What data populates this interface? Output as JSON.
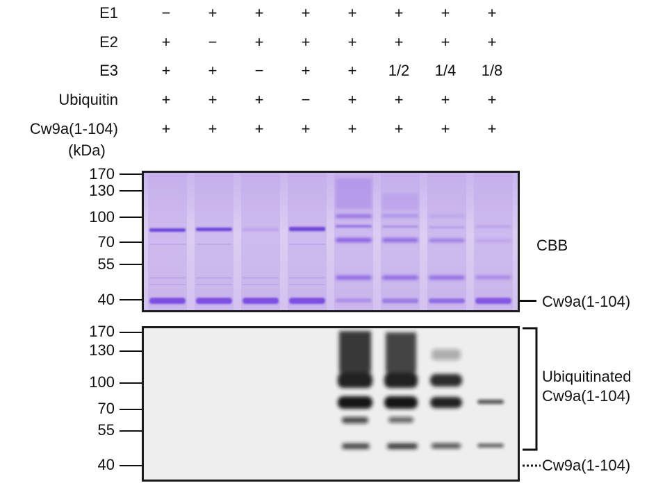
{
  "lane_count": 8,
  "conditions": [
    {
      "name": "E1",
      "values": [
        "−",
        "+",
        "+",
        "+",
        "+",
        "+",
        "+",
        "+"
      ]
    },
    {
      "name": "E2",
      "values": [
        "+",
        "−",
        "+",
        "+",
        "+",
        "+",
        "+",
        "+"
      ]
    },
    {
      "name": "E3",
      "values": [
        "+",
        "+",
        "−",
        "+",
        "+",
        "1/2",
        "1/4",
        "1/8"
      ]
    },
    {
      "name": "Ubiquitin",
      "values": [
        "+",
        "+",
        "+",
        "−",
        "+",
        "+",
        "+",
        "+"
      ]
    },
    {
      "name": "Cw9a(1-104)",
      "values": [
        "+",
        "+",
        "+",
        "+",
        "+",
        "+",
        "+",
        "+"
      ]
    }
  ],
  "mw_unit": "(kDa)",
  "cbb_panel": {
    "label": "CBB",
    "markers": [
      "170",
      "130",
      "100",
      "70",
      "55",
      "40"
    ],
    "band_label": "Cw9a(1-104)"
  },
  "blot_panel": {
    "markers": [
      "170",
      "130",
      "100",
      "70",
      "55",
      "40"
    ],
    "bracket_label_line1": "Ubiquitinated",
    "bracket_label_line2": "Cw9a(1-104)",
    "band_label": "Cw9a(1-104)"
  },
  "colors": {
    "cbb_background": "#d7c6f0",
    "cbb_band": "#7a4fe0",
    "blot_background": "#eeeeee",
    "blot_band": "#141414"
  }
}
